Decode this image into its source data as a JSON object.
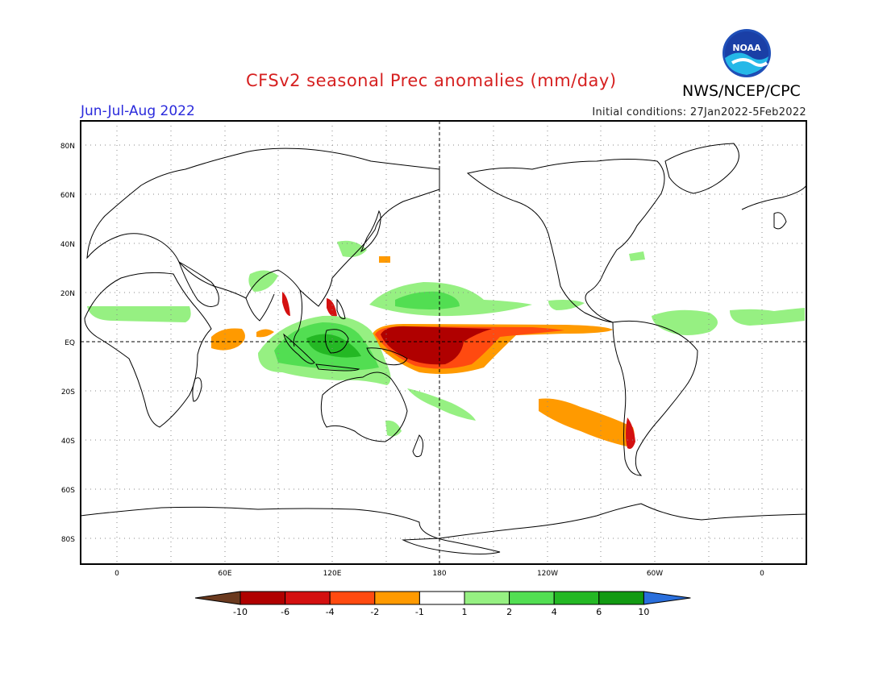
{
  "header": {
    "title": "CFSv2 seasonal Prec anomalies (mm/day)",
    "org": "NWS/NCEP/CPC",
    "period": "Jun-Jul-Aug 2022",
    "init": "Initial conditions: 27Jan2022-5Feb2022",
    "logo_text": "NOAA"
  },
  "axes": {
    "lat_labels": [
      "80N",
      "60N",
      "40N",
      "20N",
      "EQ",
      "20S",
      "40S",
      "60S",
      "80S"
    ],
    "lon_labels": [
      "0",
      "60E",
      "120E",
      "180",
      "120W",
      "60W",
      "0"
    ]
  },
  "colorbar": {
    "labels": [
      "-10",
      "-6",
      "-4",
      "-2",
      "-1",
      "1",
      "2",
      "4",
      "6",
      "10"
    ],
    "colors": [
      "#6b3a1f",
      "#b00000",
      "#d41010",
      "#ff4a10",
      "#ff9a00",
      "#ffffff",
      "#96f082",
      "#52de52",
      "#24b824",
      "#129a12",
      "#2a6fdc"
    ]
  },
  "colors": {
    "title": "#d62020",
    "period": "#2a2adc",
    "dry_strong": "#b00000",
    "dry_mid": "#d41010",
    "dry_weak": "#ff9a00",
    "wet_weak": "#96f082",
    "wet_mid": "#52de52",
    "wet_strong": "#24b824"
  }
}
